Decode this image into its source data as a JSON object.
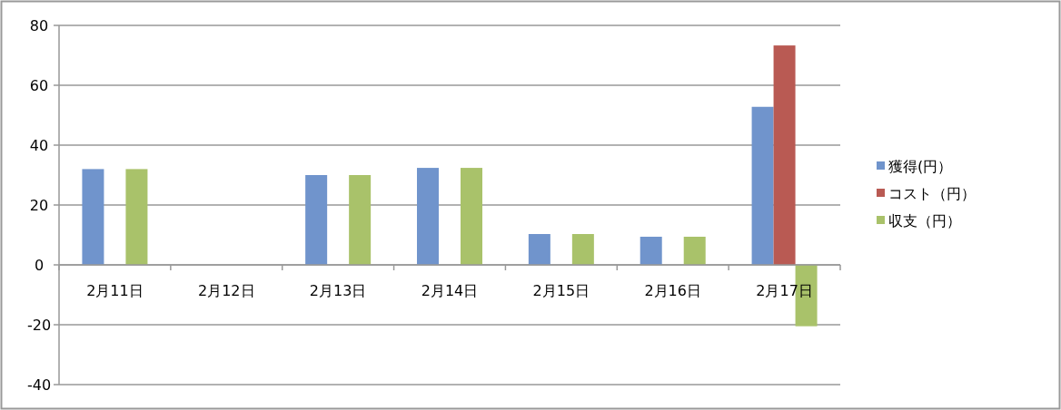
{
  "chart_data": {
    "type": "bar",
    "categories": [
      "2月11日",
      "2月12日",
      "2月13日",
      "2月14日",
      "2月15日",
      "2月16日",
      "2月17日"
    ],
    "series": [
      {
        "name": "獲得(円）",
        "color": "#7094cc",
        "values": [
          32,
          0,
          30,
          32.4,
          10.3,
          9.4,
          52.8
        ]
      },
      {
        "name": "コスト（円）",
        "color": "#b95a53",
        "values": [
          0,
          0,
          0,
          0,
          0,
          0,
          73.3
        ]
      },
      {
        "name": "収支（円）",
        "color": "#a9c26a",
        "values": [
          32,
          0,
          30,
          32.4,
          10.3,
          9.4,
          -20.5
        ]
      }
    ],
    "ylim": [
      -40,
      80
    ],
    "yticks": [
      -40,
      -20,
      0,
      20,
      40,
      60,
      80
    ],
    "grid": "y",
    "legend": "right"
  }
}
